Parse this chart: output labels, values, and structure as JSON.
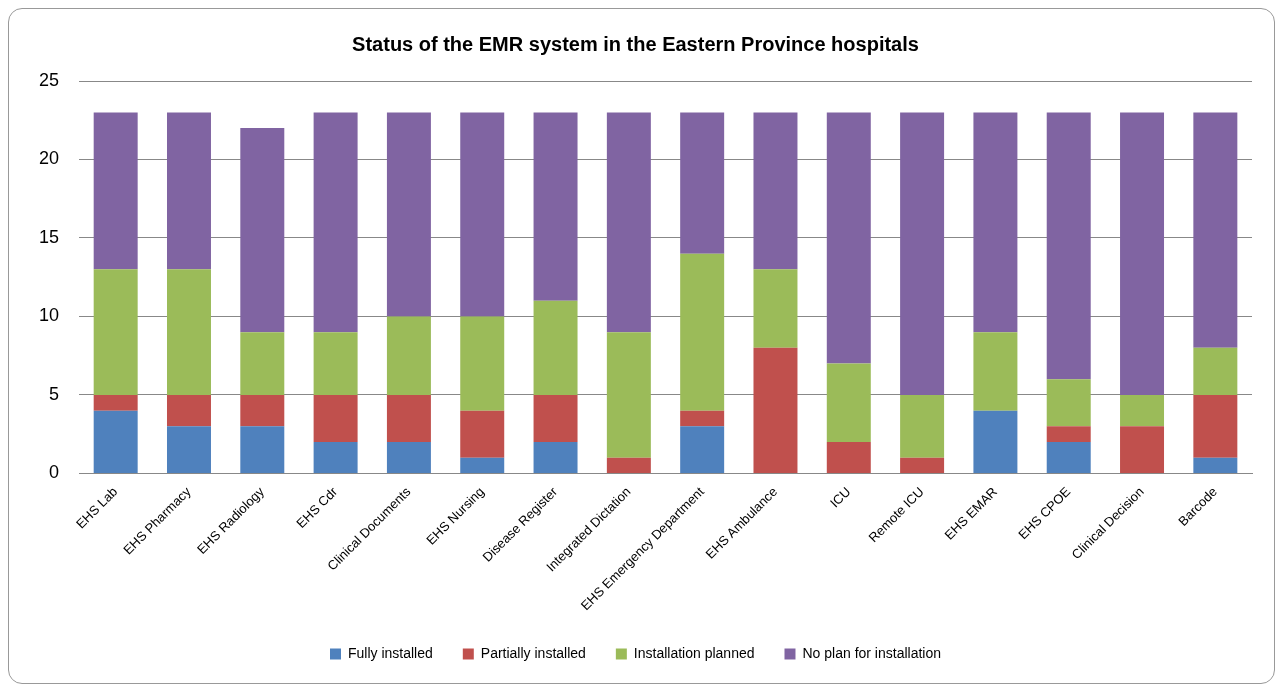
{
  "chart_data": {
    "type": "bar",
    "title": "Status of the EMR system in the Eastern Province hospitals",
    "categories": [
      "EHS Lab",
      "EHS Pharmacy",
      "EHS Radiology",
      "EHS Cdr",
      "Clinical Documents",
      "EHS Nursing",
      "Disease Register",
      "Integrated Dictation",
      "EHS Emergency Department",
      "EHS Ambulance",
      "ICU",
      "Remote ICU",
      "EHS EMAR",
      "EHS CPOE",
      "Clinical Decision",
      "Barcode"
    ],
    "stacked": true,
    "series": [
      {
        "name": "Fully installed",
        "color": "#4f81bd",
        "values": [
          4,
          3,
          3,
          2,
          2,
          1,
          2,
          0,
          3,
          0,
          0,
          0,
          4,
          2,
          0,
          1
        ]
      },
      {
        "name": "Partially installed",
        "color": "#c0504d",
        "values": [
          1,
          2,
          2,
          3,
          3,
          3,
          3,
          1,
          1,
          8,
          2,
          1,
          0,
          1,
          3,
          4
        ]
      },
      {
        "name": "Installation planned",
        "color": "#9bbb59",
        "values": [
          8,
          8,
          4,
          4,
          5,
          6,
          6,
          8,
          10,
          5,
          5,
          4,
          5,
          3,
          2,
          3
        ]
      },
      {
        "name": "No plan for installation",
        "color": "#8064a2",
        "values": [
          10,
          10,
          13,
          14,
          13,
          13,
          12,
          14,
          9,
          10,
          16,
          18,
          14,
          17,
          18,
          15
        ]
      }
    ],
    "ylim": [
      0,
      25
    ],
    "yticks": [
      0,
      5,
      10,
      15,
      20,
      25
    ],
    "grid": "y",
    "legend": "bottom"
  }
}
